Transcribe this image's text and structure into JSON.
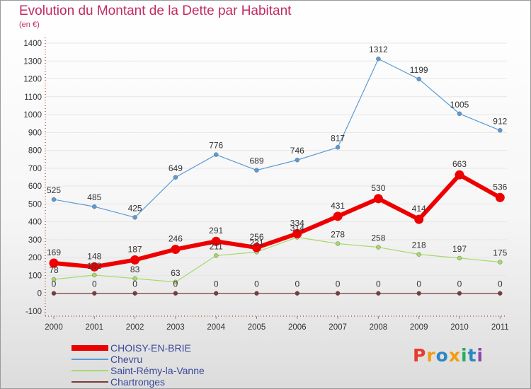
{
  "colors": {
    "title": "#c42a63",
    "axis_text": "#333333",
    "axis_line": "#c00000",
    "grid": "#e6e6e6",
    "legend_text": "#3a4a9a",
    "logo_letters": [
      "#e83b2c",
      "#f39c12",
      "#2e86c1",
      "#f39c12",
      "#27ae60",
      "#2e86c1",
      "#8e44ad"
    ]
  },
  "chart_data": {
    "type": "line",
    "title": "Evolution du Montant de la Dette par Habitant",
    "subtitle": "(en €)",
    "xlabel": "",
    "ylabel": "",
    "categories": [
      "2000",
      "2001",
      "2002",
      "2003",
      "2004",
      "2005",
      "2006",
      "2007",
      "2008",
      "2009",
      "2010",
      "2011"
    ],
    "ylim": [
      -100,
      1400
    ],
    "yticks": [
      -100,
      0,
      100,
      200,
      300,
      400,
      500,
      600,
      700,
      800,
      900,
      1000,
      1100,
      1200,
      1300,
      1400
    ],
    "grid": true,
    "legend_position": "bottom-left",
    "series": [
      {
        "name": "CHOISY-EN-BRIE",
        "color": "#ee0000",
        "emphasis": true,
        "values": [
          169,
          148,
          187,
          246,
          291,
          256,
          334,
          431,
          530,
          414,
          663,
          536
        ],
        "labels": [
          "169",
          "148",
          "187",
          "246",
          "291",
          "256",
          "334",
          "431",
          "530",
          "414",
          "663",
          "536"
        ]
      },
      {
        "name": "Chevru",
        "color": "#5b9bd5",
        "emphasis": false,
        "values": [
          525,
          485,
          425,
          649,
          776,
          689,
          746,
          817,
          1312,
          1199,
          1005,
          912
        ],
        "labels": [
          "525",
          "485",
          "425",
          "649",
          "776",
          "689",
          "746",
          "817",
          "1312",
          "1199",
          "1005",
          "912"
        ]
      },
      {
        "name": "Saint-Rémy-la-Vanne",
        "color": "#a6d96a",
        "emphasis": false,
        "values": [
          78,
          102,
          83,
          63,
          211,
          231,
          314,
          278,
          258,
          218,
          197,
          175
        ],
        "labels": [
          "78",
          "102",
          "83",
          "63",
          "211",
          "231",
          "314",
          "278",
          "258",
          "218",
          "197",
          "175"
        ]
      },
      {
        "name": "Chartronges",
        "color": "#7a3b3b",
        "emphasis": false,
        "values": [
          0,
          0,
          0,
          0,
          0,
          0,
          0,
          0,
          0,
          0,
          0,
          0
        ],
        "labels": [
          "0",
          "0",
          "0",
          "0",
          "0",
          "0",
          "0",
          "0",
          "0",
          "0",
          "0",
          "0"
        ]
      }
    ]
  },
  "logo": {
    "text": "Proxiti",
    "letters": [
      "P",
      "r",
      "o",
      "x",
      "i",
      "t",
      "i"
    ]
  }
}
